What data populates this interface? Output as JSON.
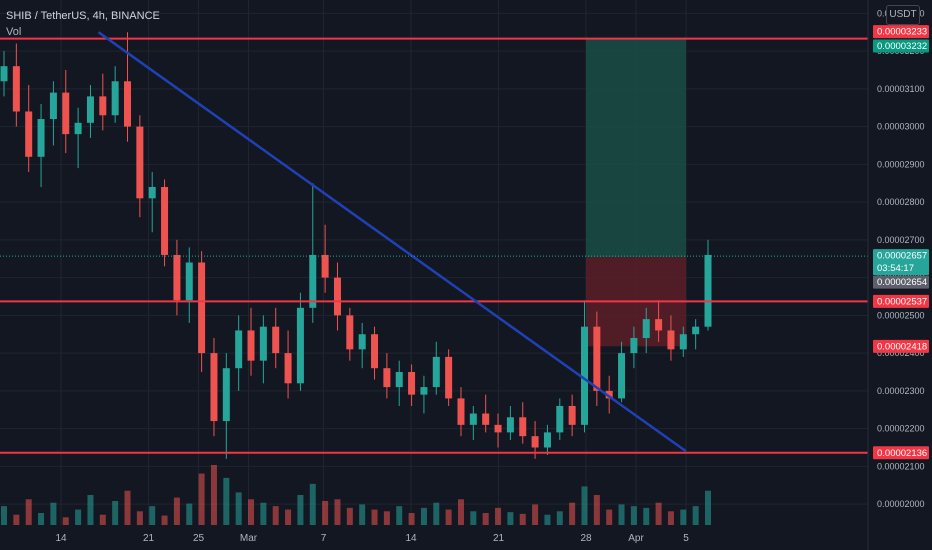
{
  "header": {
    "symbol_line": "SHIB / TetherUS, 4h, BINANCE",
    "volume_label": "Vol",
    "currency_button": "USDT"
  },
  "colors": {
    "background": "#131722",
    "grid": "#1f2430",
    "candle_up": "#26a69a",
    "candle_down": "#ef5350",
    "horizontal_level": "#f23645",
    "trendline": "#2041b5",
    "target_zone": "#1b4d45",
    "stop_zone": "#5c1f27",
    "axis_text": "#b2b5be"
  },
  "chart_data": {
    "type": "candlestick",
    "symbol": "SHIB / TetherUS",
    "interval": "4h",
    "exchange": "BINANCE",
    "y_axis": {
      "ticks": [
        "0.00003300",
        "0.00003200",
        "0.00003100",
        "0.00003000",
        "0.00002900",
        "0.00002800",
        "0.00002700",
        "0.00002600",
        "0.00002500",
        "0.00002400",
        "0.00002300",
        "0.00002200",
        "0.00002100",
        "0.00002000"
      ],
      "ylim": [
        1.95e-05,
        3.33e-05
      ]
    },
    "x_axis": {
      "ticks": [
        "14",
        "21",
        "25",
        "Mar",
        "7",
        "14",
        "21",
        "28",
        "Apr",
        "5"
      ],
      "start_date": "2021-02-10"
    },
    "price_labels": [
      {
        "value": "0.00003233",
        "kind": "horizontal-level",
        "color": "#f23645"
      },
      {
        "value": "0.00003232",
        "kind": "target",
        "color": "#089981"
      },
      {
        "value": "0.00002657",
        "kind": "last-price",
        "color": "#26a69a",
        "countdown": "03:54:17"
      },
      {
        "value": "0.00002654",
        "kind": "entry",
        "color": "#5d606b"
      },
      {
        "value": "0.00002537",
        "kind": "horizontal-level",
        "color": "#f23645"
      },
      {
        "value": "0.00002418",
        "kind": "stop",
        "color": "#f23645"
      },
      {
        "value": "0.00002136",
        "kind": "horizontal-level",
        "color": "#f23645"
      }
    ],
    "horizontal_levels": [
      3.233e-05,
      2.537e-05,
      2.136e-05
    ],
    "trendline": {
      "from": {
        "date": "2021-02-17",
        "price": 3.25e-05
      },
      "to": {
        "date": "2021-04-05",
        "price": 2.14e-05
      }
    },
    "position": {
      "entry": 2.654e-05,
      "target": 3.232e-05,
      "stop": 2.418e-05,
      "from_date": "2021-03-28",
      "to_date": "2021-04-05"
    },
    "price_series": [
      [
        3.12e-05,
        3.2e-05,
        3.08e-05,
        3.16e-05
      ],
      [
        3.16e-05,
        3.22e-05,
        3e-05,
        3.04e-05
      ],
      [
        3.04e-05,
        3.11e-05,
        2.88e-05,
        2.92e-05
      ],
      [
        2.92e-05,
        3.06e-05,
        2.84e-05,
        3.02e-05
      ],
      [
        3.02e-05,
        3.12e-05,
        2.95e-05,
        3.09e-05
      ],
      [
        3.09e-05,
        3.15e-05,
        2.93e-05,
        2.98e-05
      ],
      [
        2.98e-05,
        3.05e-05,
        2.89e-05,
        3.01e-05
      ],
      [
        3.01e-05,
        3.11e-05,
        2.97e-05,
        3.08e-05
      ],
      [
        3.08e-05,
        3.14e-05,
        2.99e-05,
        3.03e-05
      ],
      [
        3.03e-05,
        3.16e-05,
        3.01e-05,
        3.12e-05
      ],
      [
        3.12e-05,
        3.25e-05,
        2.96e-05,
        3e-05
      ],
      [
        3e-05,
        3.03e-05,
        2.76e-05,
        2.81e-05
      ],
      [
        2.81e-05,
        2.88e-05,
        2.72e-05,
        2.84e-05
      ],
      [
        2.84e-05,
        2.86e-05,
        2.63e-05,
        2.66e-05
      ],
      [
        2.66e-05,
        2.7e-05,
        2.5e-05,
        2.54e-05
      ],
      [
        2.54e-05,
        2.68e-05,
        2.48e-05,
        2.64e-05
      ],
      [
        2.64e-05,
        2.67e-05,
        2.35e-05,
        2.4e-05
      ],
      [
        2.4e-05,
        2.44e-05,
        2.18e-05,
        2.22e-05
      ],
      [
        2.22e-05,
        2.4e-05,
        2.12e-05,
        2.36e-05
      ],
      [
        2.36e-05,
        2.5e-05,
        2.3e-05,
        2.46e-05
      ],
      [
        2.46e-05,
        2.52e-05,
        2.34e-05,
        2.38e-05
      ],
      [
        2.38e-05,
        2.5e-05,
        2.32e-05,
        2.47e-05
      ],
      [
        2.47e-05,
        2.52e-05,
        2.36e-05,
        2.4e-05
      ],
      [
        2.4e-05,
        2.46e-05,
        2.28e-05,
        2.32e-05
      ],
      [
        2.32e-05,
        2.56e-05,
        2.3e-05,
        2.52e-05
      ],
      [
        2.52e-05,
        2.85e-05,
        2.48e-05,
        2.66e-05
      ],
      [
        2.66e-05,
        2.74e-05,
        2.56e-05,
        2.6e-05
      ],
      [
        2.6e-05,
        2.64e-05,
        2.46e-05,
        2.5e-05
      ],
      [
        2.5e-05,
        2.52e-05,
        2.38e-05,
        2.41e-05
      ],
      [
        2.41e-05,
        2.48e-05,
        2.36e-05,
        2.45e-05
      ],
      [
        2.45e-05,
        2.47e-05,
        2.33e-05,
        2.36e-05
      ],
      [
        2.36e-05,
        2.4e-05,
        2.28e-05,
        2.31e-05
      ],
      [
        2.31e-05,
        2.38e-05,
        2.26e-05,
        2.35e-05
      ],
      [
        2.35e-05,
        2.37e-05,
        2.26e-05,
        2.29e-05
      ],
      [
        2.29e-05,
        2.34e-05,
        2.24e-05,
        2.31e-05
      ],
      [
        2.31e-05,
        2.43e-05,
        2.29e-05,
        2.39e-05
      ],
      [
        2.39e-05,
        2.41e-05,
        2.26e-05,
        2.28e-05
      ],
      [
        2.28e-05,
        2.31e-05,
        2.18e-05,
        2.21e-05
      ],
      [
        2.21e-05,
        2.26e-05,
        2.17e-05,
        2.24e-05
      ],
      [
        2.24e-05,
        2.29e-05,
        2.19e-05,
        2.21e-05
      ],
      [
        2.21e-05,
        2.24e-05,
        2.15e-05,
        2.19e-05
      ],
      [
        2.19e-05,
        2.26e-05,
        2.17e-05,
        2.23e-05
      ],
      [
        2.23e-05,
        2.27e-05,
        2.16e-05,
        2.18e-05
      ],
      [
        2.18e-05,
        2.22e-05,
        2.12e-05,
        2.15e-05
      ],
      [
        2.15e-05,
        2.21e-05,
        2.13e-05,
        2.19e-05
      ],
      [
        2.19e-05,
        2.28e-05,
        2.17e-05,
        2.26e-05
      ],
      [
        2.26e-05,
        2.29e-05,
        2.18e-05,
        2.21e-05
      ],
      [
        2.21e-05,
        2.54e-05,
        2.19e-05,
        2.47e-05
      ],
      [
        2.47e-05,
        2.51e-05,
        2.26e-05,
        2.3e-05
      ],
      [
        2.3e-05,
        2.34e-05,
        2.24e-05,
        2.28e-05
      ],
      [
        2.28e-05,
        2.43e-05,
        2.27e-05,
        2.4e-05
      ],
      [
        2.4e-05,
        2.47e-05,
        2.36e-05,
        2.44e-05
      ],
      [
        2.44e-05,
        2.52e-05,
        2.4e-05,
        2.49e-05
      ],
      [
        2.49e-05,
        2.54e-05,
        2.43e-05,
        2.46e-05
      ],
      [
        2.46e-05,
        2.5e-05,
        2.38e-05,
        2.41e-05
      ],
      [
        2.41e-05,
        2.47e-05,
        2.39e-05,
        2.45e-05
      ],
      [
        2.45e-05,
        2.49e-05,
        2.41e-05,
        2.47e-05
      ],
      [
        2.47e-05,
        2.7e-05,
        2.46e-05,
        2.66e-05
      ]
    ],
    "volume": [
      22,
      12,
      30,
      14,
      26,
      9,
      18,
      35,
      12,
      28,
      40,
      16,
      22,
      11,
      32,
      25,
      60,
      70,
      55,
      38,
      30,
      26,
      22,
      18,
      35,
      48,
      28,
      30,
      20,
      24,
      18,
      16,
      22,
      14,
      20,
      26,
      18,
      30,
      16,
      14,
      20,
      15,
      13,
      24,
      12,
      16,
      26,
      45,
      35,
      18,
      24,
      22,
      20,
      26,
      16,
      18,
      22,
      40
    ]
  }
}
